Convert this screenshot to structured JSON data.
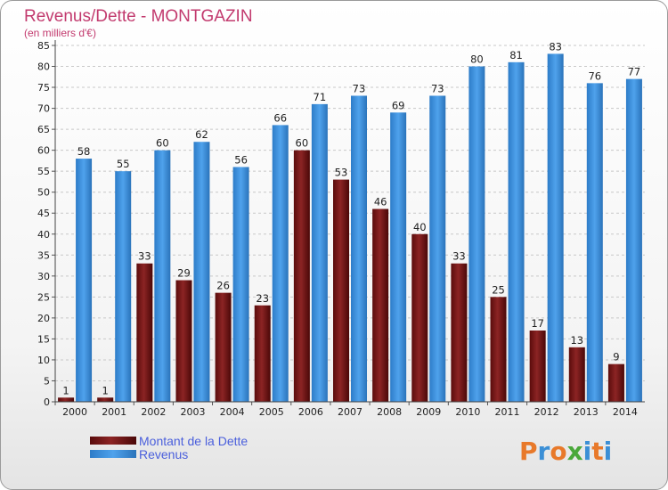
{
  "colors": {
    "dette": "#7a1616",
    "revenus": "#3a8fdb",
    "title": "#c23a6e",
    "legend": "#4a5fdc"
  },
  "chart_data": {
    "type": "bar",
    "title": "Revenus/Dette - MONTGAZIN",
    "subtitle": "(en milliers d'€)",
    "categories": [
      "2000",
      "2001",
      "2002",
      "2003",
      "2004",
      "2005",
      "2006",
      "2007",
      "2008",
      "2009",
      "2010",
      "2011",
      "2012",
      "2013",
      "2014"
    ],
    "series": [
      {
        "name": "Montant de la Dette",
        "values": [
          1,
          1,
          33,
          29,
          26,
          23,
          60,
          53,
          46,
          40,
          33,
          25,
          17,
          13,
          9
        ]
      },
      {
        "name": "Revenus",
        "values": [
          58,
          55,
          60,
          62,
          56,
          66,
          71,
          73,
          69,
          73,
          80,
          81,
          83,
          76,
          77
        ]
      }
    ],
    "ylim": [
      0,
      85
    ],
    "yticks": [
      0,
      5,
      10,
      15,
      20,
      25,
      30,
      35,
      40,
      45,
      50,
      55,
      60,
      65,
      70,
      75,
      80,
      85
    ],
    "grid": "horizontal-dashed",
    "legend_position": "bottom-left"
  },
  "logo": {
    "letters": [
      "P",
      "r",
      "o",
      "x",
      "i",
      "t",
      "i"
    ]
  }
}
